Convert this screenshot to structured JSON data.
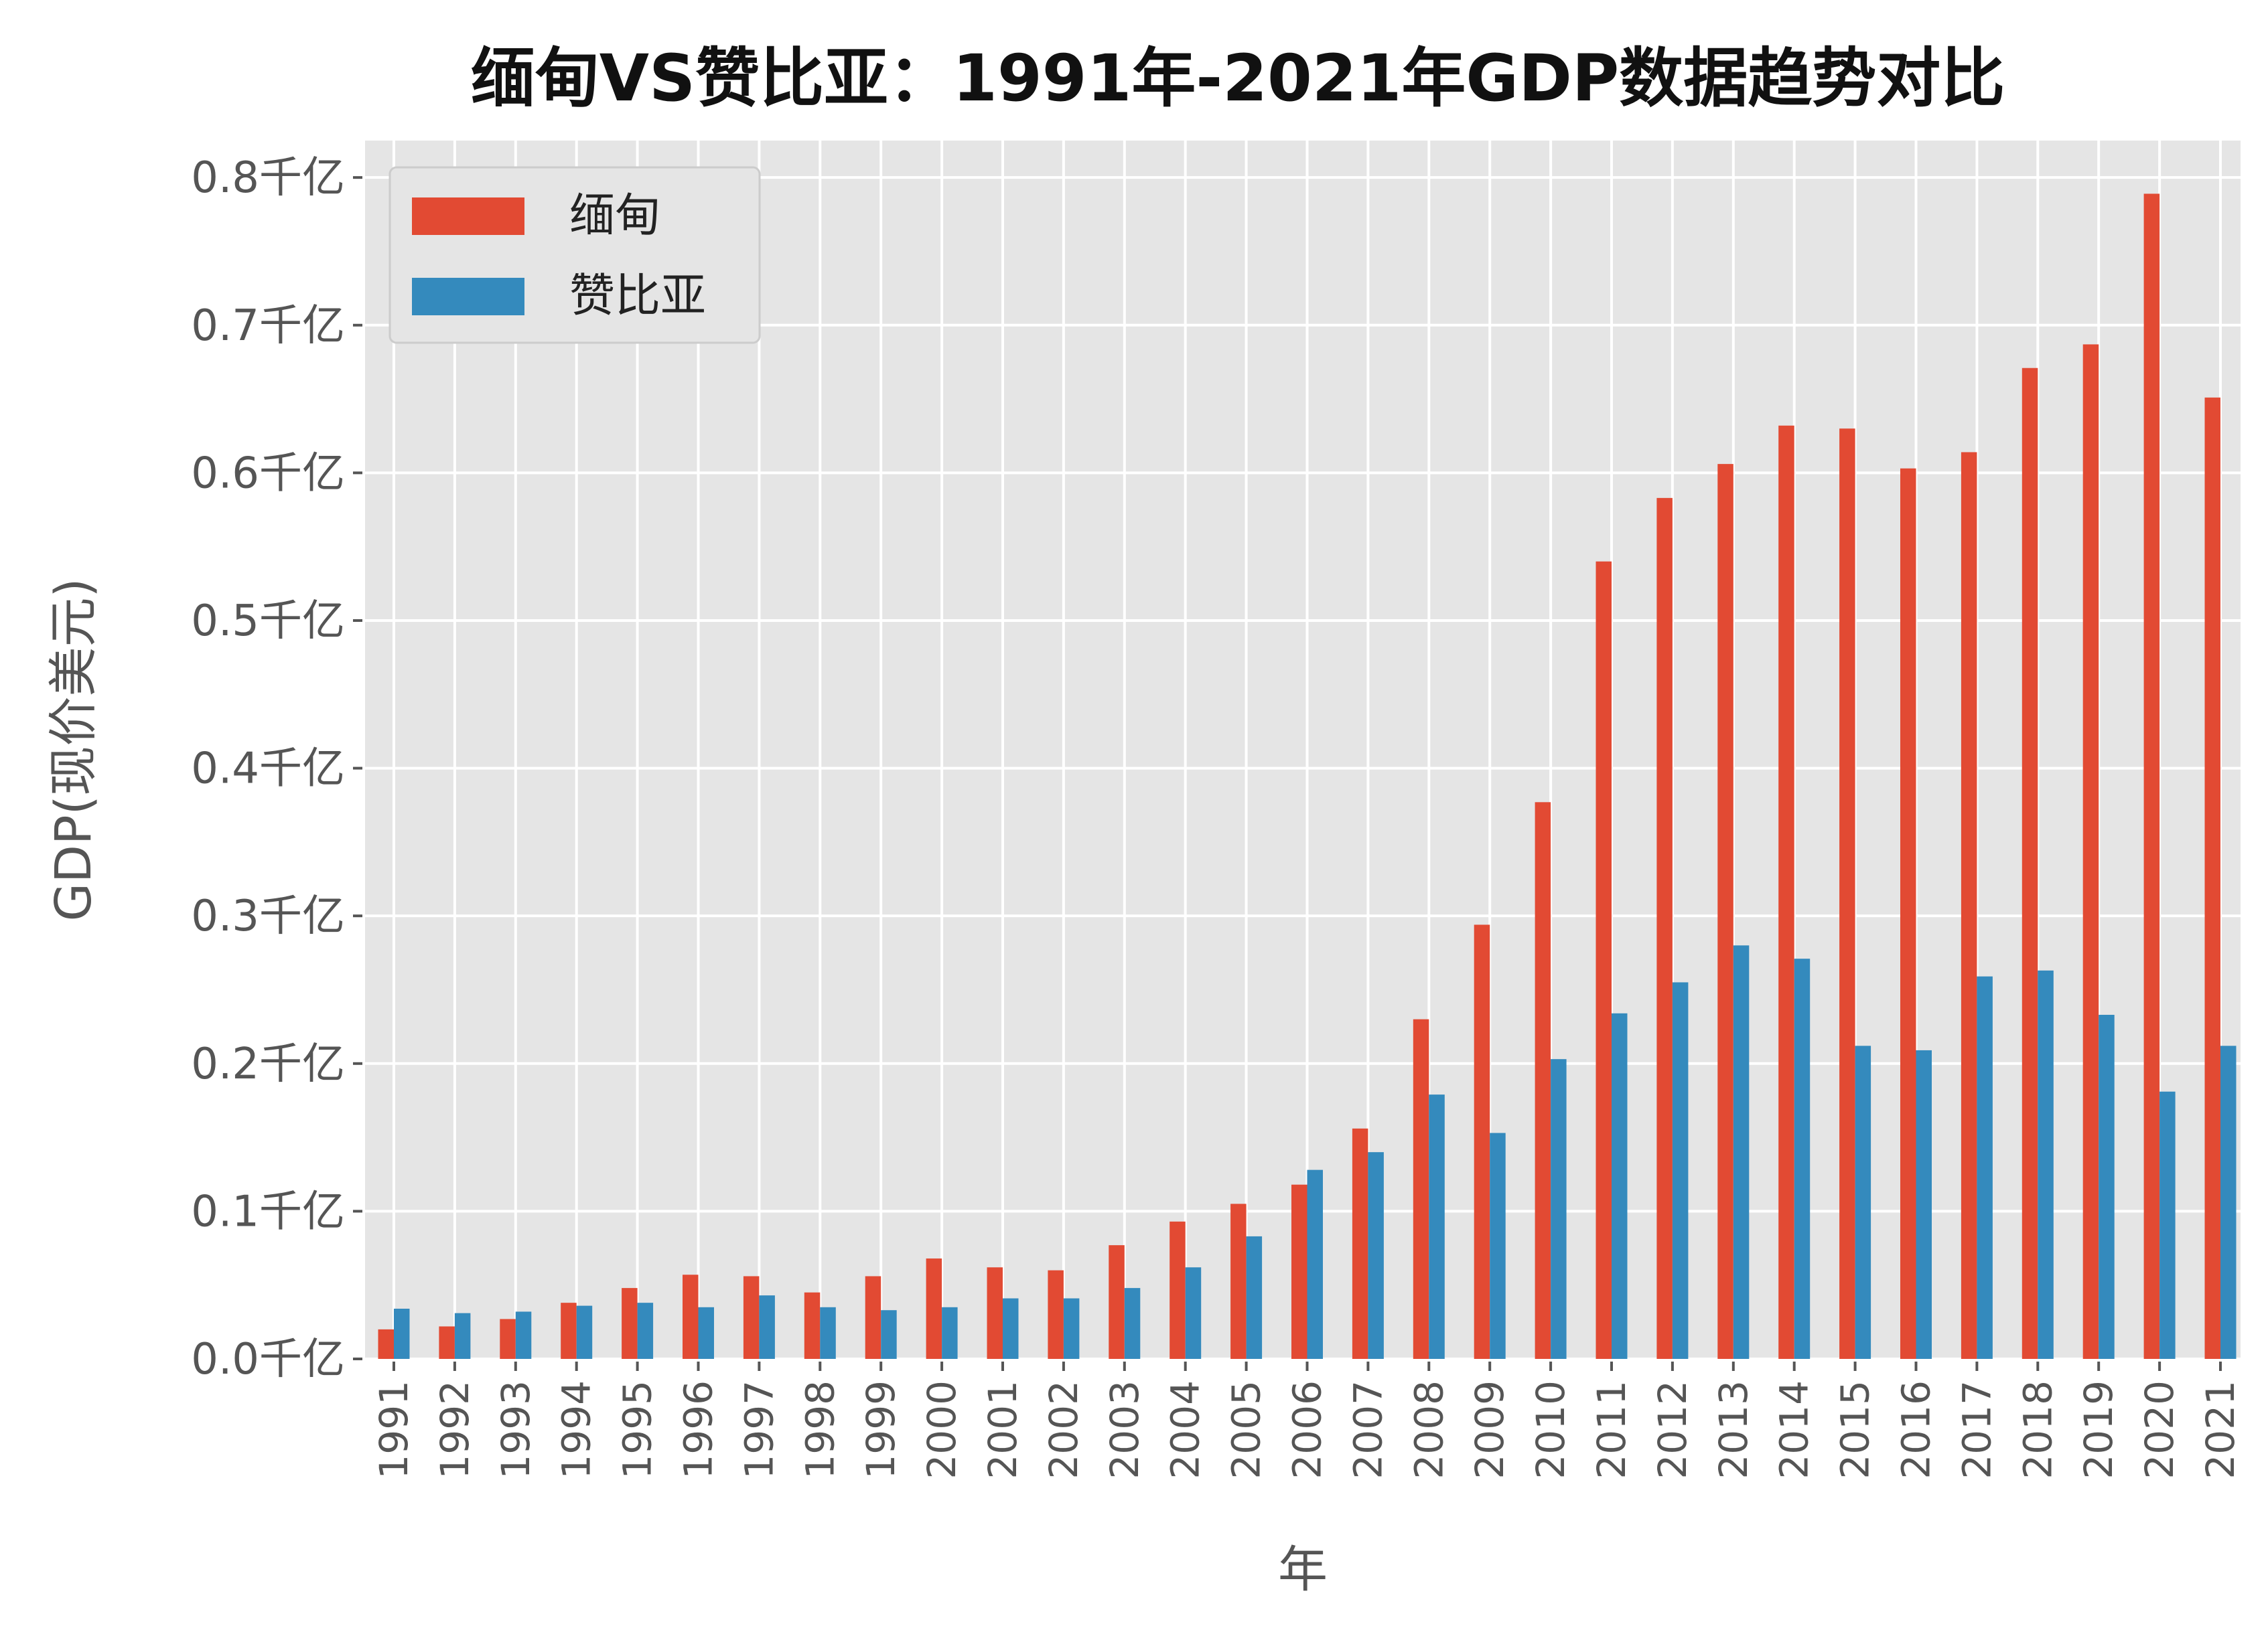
{
  "chart_data": {
    "type": "bar",
    "title": "缅甸VS赞比亚：1991年-2021年GDP数据趋势对比",
    "xlabel": "年",
    "ylabel": "GDP(现价美元)",
    "ylim": [
      0,
      0.825
    ],
    "yticks": [
      0.0,
      0.1,
      0.2,
      0.3,
      0.4,
      0.5,
      0.6,
      0.7,
      0.8
    ],
    "ytick_labels": [
      "0.0千亿",
      "0.1千亿",
      "0.2千亿",
      "0.3千亿",
      "0.4千亿",
      "0.5千亿",
      "0.6千亿",
      "0.7千亿",
      "0.8千亿"
    ],
    "grid": true,
    "legend_position": "top-left",
    "categories": [
      "1991",
      "1992",
      "1993",
      "1994",
      "1995",
      "1996",
      "1997",
      "1998",
      "1999",
      "2000",
      "2001",
      "2002",
      "2003",
      "2004",
      "2005",
      "2006",
      "2007",
      "2008",
      "2009",
      "2010",
      "2011",
      "2012",
      "2013",
      "2014",
      "2015",
      "2016",
      "2017",
      "2018",
      "2019",
      "2020",
      "2021"
    ],
    "series": [
      {
        "name": "缅甸",
        "color": "#E24A33",
        "values": [
          0.02,
          0.022,
          0.027,
          0.038,
          0.048,
          0.057,
          0.056,
          0.045,
          0.056,
          0.068,
          0.062,
          0.06,
          0.077,
          0.093,
          0.105,
          0.118,
          0.156,
          0.23,
          0.294,
          0.377,
          0.54,
          0.583,
          0.606,
          0.632,
          0.63,
          0.603,
          0.614,
          0.671,
          0.687,
          0.789,
          0.651
        ]
      },
      {
        "name": "赞比亚",
        "color": "#348ABD",
        "values": [
          0.034,
          0.031,
          0.032,
          0.036,
          0.038,
          0.035,
          0.043,
          0.035,
          0.033,
          0.035,
          0.041,
          0.041,
          0.048,
          0.062,
          0.083,
          0.128,
          0.14,
          0.179,
          0.153,
          0.203,
          0.234,
          0.255,
          0.28,
          0.271,
          0.212,
          0.209,
          0.259,
          0.263,
          0.233,
          0.181,
          0.212
        ]
      }
    ]
  }
}
